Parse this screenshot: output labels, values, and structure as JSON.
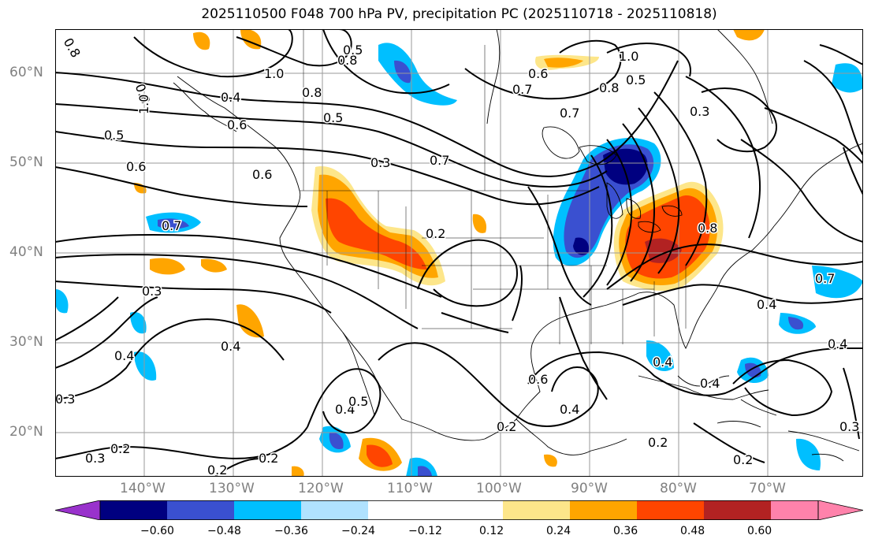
{
  "title": "2025110500 F048 700 hPa PV, precipitation PC (2025110718 - 2025110818)",
  "map": {
    "lat_ticks": [
      "60°N",
      "50°N",
      "40°N",
      "30°N",
      "20°N"
    ],
    "lon_ticks": [
      "140°W",
      "130°W",
      "120°W",
      "110°W",
      "100°W",
      "90°W",
      "80°W",
      "70°W"
    ],
    "lat_range": [
      15,
      65
    ],
    "lon_range": [
      -150,
      -60
    ],
    "contour_labels": [
      "0.8",
      "1.0",
      "0.8",
      "0.5",
      "0.7",
      "0.6",
      "0.8",
      "1.0",
      "0.8",
      "0.5",
      "1.0",
      "0.3",
      "0.4",
      "0.6",
      "0.5",
      "0.6",
      "0.7",
      "0.6",
      "0.8",
      "0.4",
      "0.7",
      "0.3",
      "0.4",
      "0.3",
      "0.2",
      "0.3",
      "0.2",
      "0.4",
      "0.5",
      "0.2",
      "0.2",
      "0.4",
      "0.2",
      "0.4",
      "0.4",
      "0.2",
      "0.3",
      "0.2",
      "0.4",
      "0.7",
      "0.8",
      "0.8",
      "0.3",
      "0.5",
      "0.7",
      "0.6",
      "0.4"
    ]
  },
  "colorbar": {
    "ticks": [
      "−0.60",
      "−0.48",
      "−0.36",
      "−0.24",
      "−0.12",
      "0.12",
      "0.24",
      "0.36",
      "0.48",
      "0.60"
    ],
    "colors": [
      "#9932cc",
      "#000080",
      "#3a50d0",
      "#00bfff",
      "#b0e2ff",
      "#ffffff",
      "#fde68a",
      "#ffa500",
      "#ff4500",
      "#b22222",
      "#ff82ab"
    ]
  },
  "shading_colors": {
    "neg_strong": "#000080",
    "neg_mid": "#3a50d0",
    "neg_light": "#00bfff",
    "neg_faint": "#b0e2ff",
    "pos_faint": "#fde68a",
    "pos_light": "#ffa500",
    "pos_mid": "#ff4500",
    "pos_strong": "#b22222"
  }
}
